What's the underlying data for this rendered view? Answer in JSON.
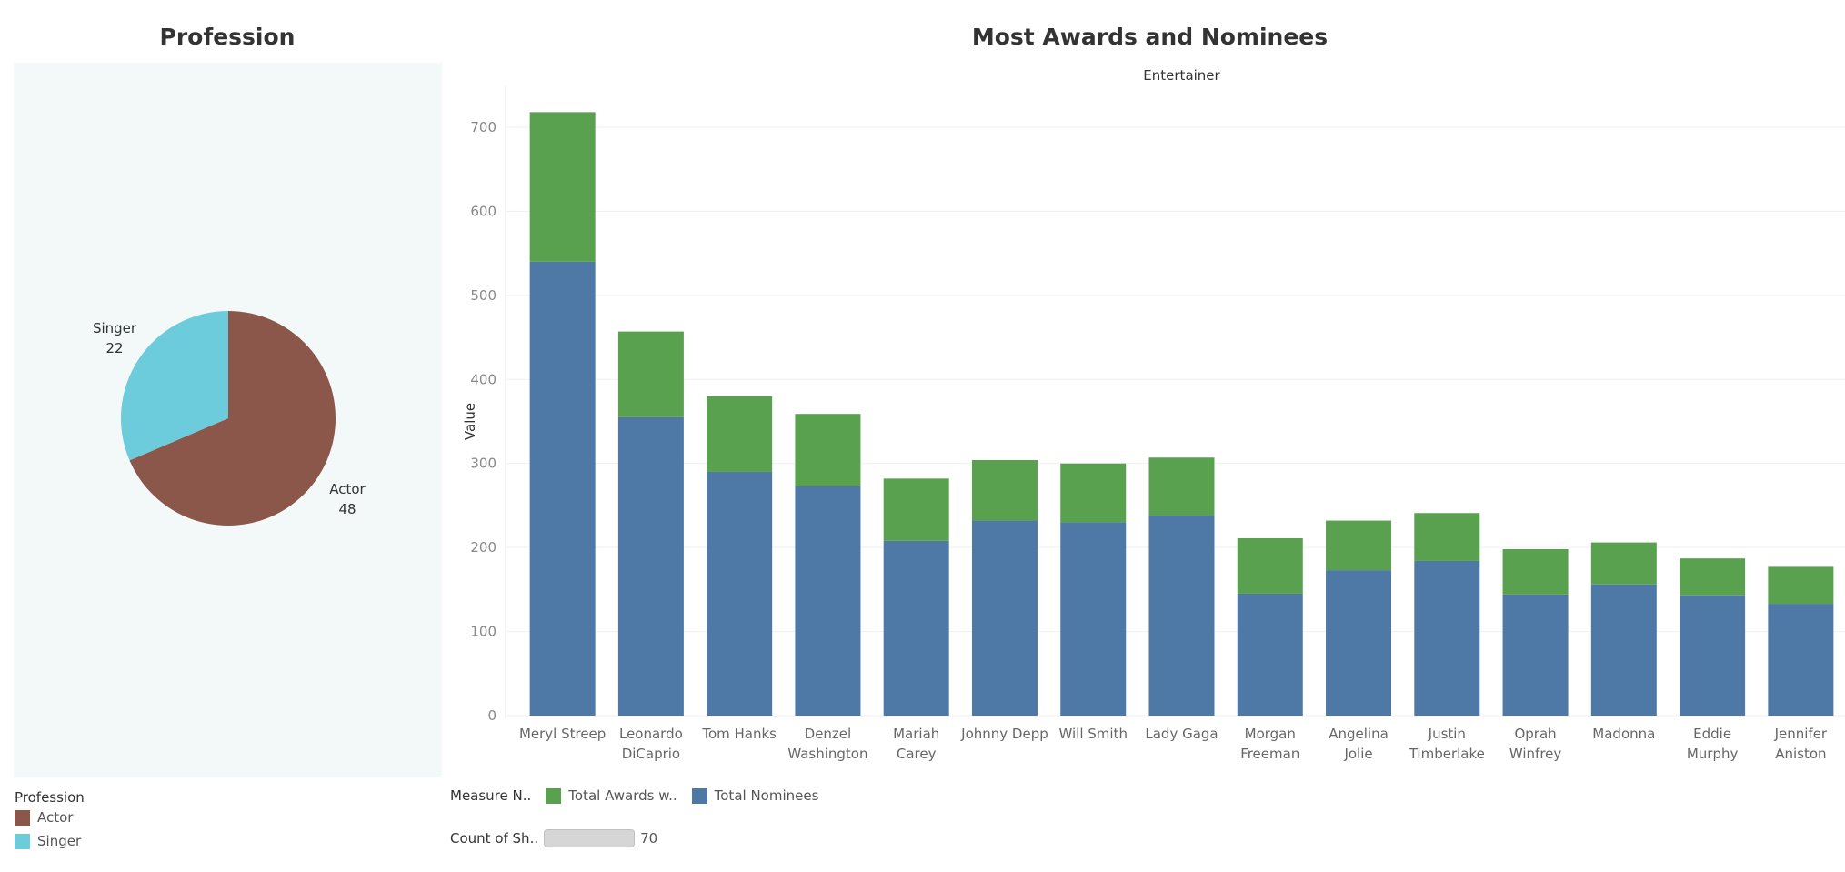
{
  "pie_title": "Profession",
  "bar_title": "Most Awards and Nominees",
  "chart_data": [
    {
      "type": "pie",
      "title": "Profession",
      "slices": [
        {
          "label": "Actor",
          "value": 48,
          "color": "#8b574b"
        },
        {
          "label": "Singer",
          "value": 22,
          "color": "#6dccdb"
        }
      ]
    },
    {
      "type": "bar",
      "stacked": true,
      "title": "Most Awards and Nominees",
      "header": "Entertainer",
      "ylabel": "Value",
      "ylim": [
        0,
        740
      ],
      "yticks": [
        0,
        100,
        200,
        300,
        400,
        500,
        600,
        700
      ],
      "grid": true,
      "categories": [
        [
          "Meryl Streep"
        ],
        [
          "Leonardo",
          "DiCaprio"
        ],
        [
          "Tom Hanks"
        ],
        [
          "Denzel",
          "Washington"
        ],
        [
          "Mariah",
          "Carey"
        ],
        [
          "Johnny Depp"
        ],
        [
          "Will Smith"
        ],
        [
          "Lady Gaga"
        ],
        [
          "Morgan",
          "Freeman"
        ],
        [
          "Angelina",
          "Jolie"
        ],
        [
          "Justin",
          "Timberlake"
        ],
        [
          "Oprah",
          "Winfrey"
        ],
        [
          "Madonna"
        ],
        [
          "Eddie",
          "Murphy"
        ],
        [
          "Jennifer",
          "Aniston"
        ]
      ],
      "series": [
        {
          "name": "Total Nominees",
          "color": "#4e79a7",
          "values": [
            540,
            355,
            290,
            273,
            208,
            232,
            230,
            238,
            145,
            173,
            184,
            144,
            156,
            143,
            133
          ]
        },
        {
          "name": "Total Awards w..",
          "color": "#59a14f",
          "values": [
            178,
            102,
            90,
            86,
            74,
            72,
            70,
            69,
            66,
            59,
            57,
            54,
            50,
            44,
            44
          ]
        }
      ]
    }
  ],
  "legends": {
    "profession_title": "Profession",
    "profession_items": [
      {
        "label": "Actor",
        "color": "#8b574b"
      },
      {
        "label": "Singer",
        "color": "#6dccdb"
      }
    ],
    "measure_title": "Measure N..",
    "measure_items": [
      {
        "label": "Total Awards w..",
        "color": "#59a14f"
      },
      {
        "label": "Total Nominees",
        "color": "#4e79a7"
      }
    ],
    "count_title": "Count of Sh..",
    "count_value": "70"
  }
}
